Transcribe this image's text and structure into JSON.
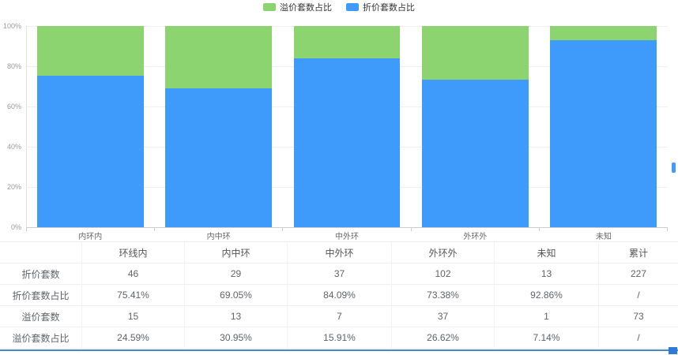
{
  "chart_data": {
    "type": "bar",
    "stacked": true,
    "percent_stacked": true,
    "title": "",
    "xlabel": "",
    "ylabel": "",
    "categories": [
      "内环内",
      "内中环",
      "中外环",
      "外环外",
      "未知"
    ],
    "series": [
      {
        "name": "折价套数占比",
        "color": "#3E9BFB",
        "values": [
          75.41,
          69.05,
          84.09,
          73.38,
          92.86
        ]
      },
      {
        "name": "溢价套数占比",
        "color": "#8CD46F",
        "values": [
          24.59,
          30.95,
          15.91,
          26.62,
          7.14
        ]
      }
    ],
    "legend": [
      "溢价套数占比",
      "折价套数占比"
    ],
    "legend_position": "top-center",
    "y_ticks": [
      "0%",
      "20%",
      "40%",
      "60%",
      "80%",
      "100%"
    ],
    "ylim": [
      0,
      100
    ],
    "grid": true
  },
  "table": {
    "headers": [
      "",
      "环线内",
      "内中环",
      "中外环",
      "外环外",
      "未知",
      "累计"
    ],
    "rows": [
      {
        "label": "折价套数",
        "cells": [
          "46",
          "29",
          "37",
          "102",
          "13",
          "227"
        ]
      },
      {
        "label": "折价套数占比",
        "cells": [
          "75.41%",
          "69.05%",
          "84.09%",
          "73.38%",
          "92.86%",
          "/"
        ]
      },
      {
        "label": "溢价套数",
        "cells": [
          "15",
          "13",
          "7",
          "37",
          "1",
          "73"
        ]
      },
      {
        "label": "溢价套数占比",
        "cells": [
          "24.59%",
          "30.95%",
          "15.91%",
          "26.62%",
          "7.14%",
          "/"
        ]
      }
    ]
  },
  "colors": {
    "premium_green": "#8CD46F",
    "discount_blue": "#3E9BFB",
    "grid_line": "#f0f0f0",
    "table_border": "#ebeef5",
    "bottom_line": "#4a86c8",
    "resize_handle": "#2d7bd3",
    "scroll_thumb": "#3E9BFB"
  }
}
